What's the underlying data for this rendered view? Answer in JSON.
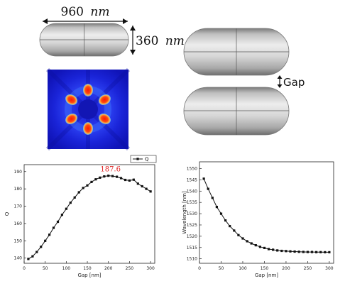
{
  "top": {
    "length_value": "960",
    "width_value": "360",
    "unit": "nm",
    "gap_label": "Gap"
  },
  "colors": {
    "field_background": "#1418c8",
    "hotspot": "#ff2a10",
    "annotation": "#e02020",
    "curve": "#111111"
  },
  "chart_data": [
    {
      "type": "line",
      "xlabel": "Gap [nm]",
      "ylabel": "Q",
      "xlim": [
        0,
        310
      ],
      "ylim": [
        137,
        194
      ],
      "xticks": [
        0,
        50,
        100,
        150,
        200,
        250,
        300
      ],
      "yticks": [
        140,
        150,
        160,
        170,
        180,
        190
      ],
      "legend": "top-right",
      "annotation": {
        "text": "187.6",
        "x": 205,
        "y": 187.6
      },
      "series": [
        {
          "name": "Q",
          "x": [
            10,
            20,
            30,
            40,
            50,
            60,
            70,
            80,
            90,
            100,
            110,
            120,
            130,
            140,
            150,
            160,
            170,
            180,
            190,
            200,
            210,
            220,
            230,
            240,
            250,
            260,
            270,
            280,
            290,
            300
          ],
          "y": [
            139.5,
            141,
            143.5,
            146.5,
            150,
            153.5,
            157.5,
            161,
            165,
            168.5,
            172,
            175,
            178,
            180.5,
            182,
            184,
            185.5,
            186.5,
            187.2,
            187.6,
            187.4,
            187,
            186.2,
            185.2,
            184.8,
            185.3,
            183,
            181.5,
            180,
            178.5
          ]
        }
      ]
    },
    {
      "type": "line",
      "xlabel": "Gap [nm]",
      "ylabel": "Wavelength [nm]",
      "xlim": [
        0,
        310
      ],
      "ylim": [
        1508,
        1553
      ],
      "xticks": [
        0,
        50,
        100,
        150,
        200,
        250,
        300
      ],
      "yticks": [
        1510,
        1515,
        1520,
        1525,
        1530,
        1535,
        1540,
        1545,
        1550
      ],
      "series": [
        {
          "x": [
            10,
            20,
            30,
            40,
            50,
            60,
            70,
            80,
            90,
            100,
            110,
            120,
            130,
            140,
            150,
            160,
            170,
            180,
            190,
            200,
            210,
            220,
            230,
            240,
            250,
            260,
            270,
            280,
            290,
            300
          ],
          "y": [
            1545.5,
            1541,
            1537,
            1533,
            1530,
            1527,
            1524.5,
            1522.5,
            1520.5,
            1519,
            1517.8,
            1516.8,
            1516,
            1515.3,
            1514.8,
            1514.3,
            1514,
            1513.7,
            1513.5,
            1513.4,
            1513.3,
            1513.2,
            1513.1,
            1513.05,
            1513,
            1513,
            1512.95,
            1512.95,
            1512.9,
            1512.9
          ]
        }
      ]
    }
  ]
}
